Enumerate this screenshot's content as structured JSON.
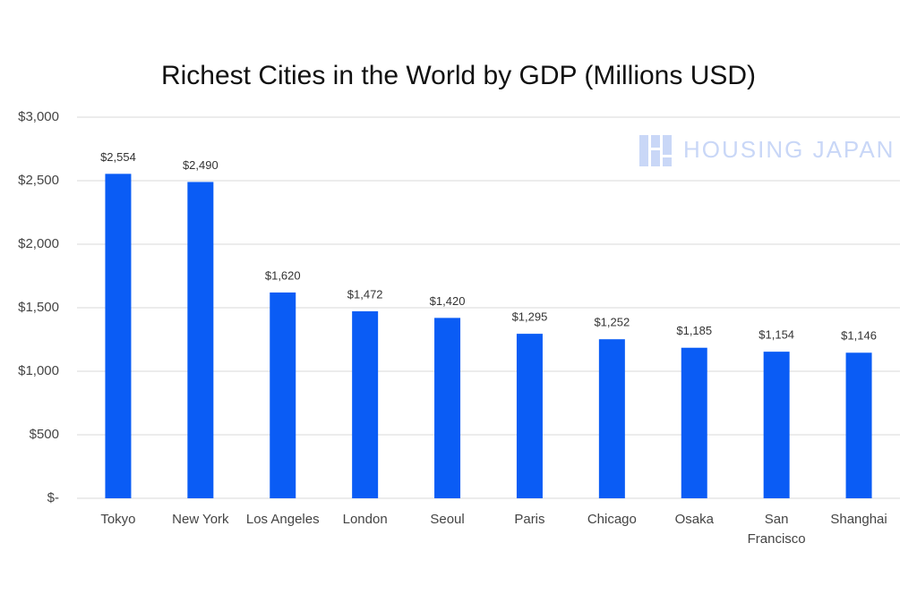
{
  "chart_data": {
    "type": "bar",
    "title": "Richest Cities in the World by GDP (Millions USD)",
    "categories": [
      "Tokyo",
      "New York",
      "Los Angeles",
      "London",
      "Seoul",
      "Paris",
      "Chicago",
      "Osaka",
      "San Francisco",
      "Shanghai"
    ],
    "values": [
      2554,
      2490,
      1620,
      1472,
      1420,
      1295,
      1252,
      1185,
      1154,
      1146
    ],
    "value_labels": [
      "$2,554",
      "$2,490",
      "$1,620",
      "$1,472",
      "$1,420",
      "$1,295",
      "$1,252",
      "$1,185",
      "$1,154",
      "$1,146"
    ],
    "color": "#0a5cf5",
    "ylim": [
      0,
      3000
    ],
    "yticks": [
      {
        "value": 0,
        "label": "$-"
      },
      {
        "value": 500,
        "label": "$500"
      },
      {
        "value": 1000,
        "label": "$1,000"
      },
      {
        "value": 1500,
        "label": "$1,500"
      },
      {
        "value": 2000,
        "label": "$2,000"
      },
      {
        "value": 2500,
        "label": "$2,500"
      },
      {
        "value": 3000,
        "label": "$3,000"
      }
    ],
    "grid": true,
    "watermark": "HOUSING JAPAN"
  }
}
